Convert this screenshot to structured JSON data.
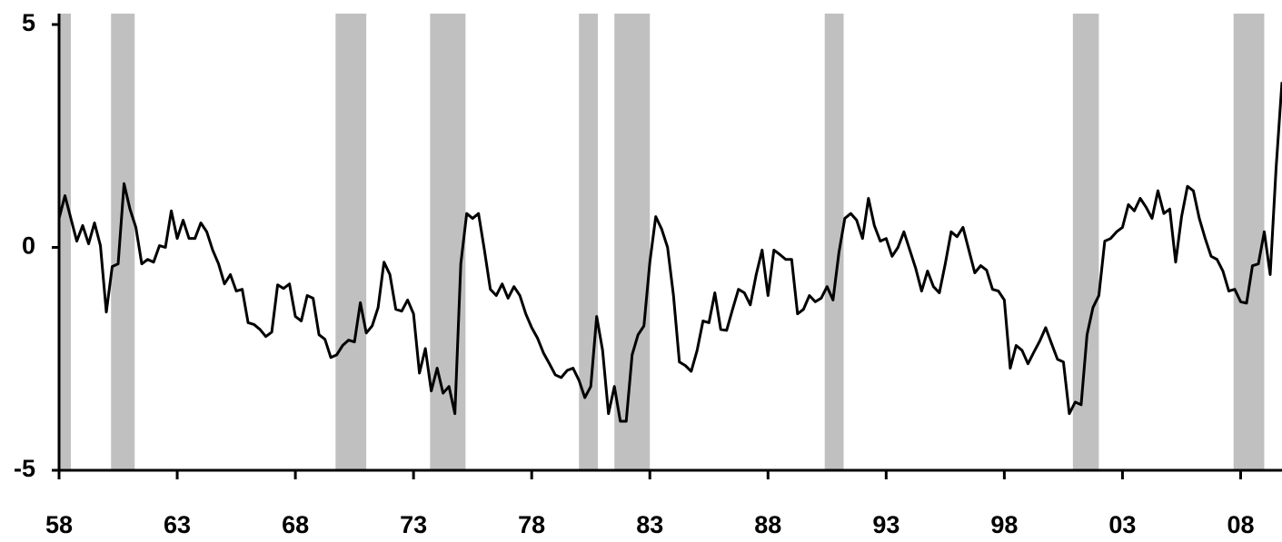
{
  "chart_data": {
    "type": "line",
    "x": [
      58,
      58.25,
      58.5,
      58.75,
      59,
      59.25,
      59.5,
      59.75,
      60,
      60.25,
      60.5,
      60.75,
      61,
      61.25,
      61.5,
      61.75,
      62,
      62.25,
      62.5,
      62.75,
      63,
      63.25,
      63.5,
      63.75,
      64,
      64.25,
      64.5,
      64.75,
      65,
      65.25,
      65.5,
      65.75,
      66,
      66.25,
      66.5,
      66.75,
      67,
      67.25,
      67.5,
      67.75,
      68,
      68.25,
      68.5,
      68.75,
      69,
      69.25,
      69.5,
      69.75,
      70,
      70.25,
      70.5,
      70.75,
      71,
      71.25,
      71.5,
      71.75,
      72,
      72.25,
      72.5,
      72.75,
      73,
      73.25,
      73.5,
      73.75,
      74,
      74.25,
      74.5,
      74.75,
      75,
      75.25,
      75.5,
      75.75,
      76,
      76.25,
      76.5,
      76.75,
      77,
      77.25,
      77.5,
      77.75,
      78,
      78.25,
      78.5,
      78.75,
      79,
      79.25,
      79.5,
      79.75,
      80,
      80.25,
      80.5,
      80.75,
      81,
      81.25,
      81.5,
      81.75,
      82,
      82.25,
      82.5,
      82.75,
      83,
      83.25,
      83.5,
      83.75,
      84,
      84.25,
      84.5,
      84.75,
      85,
      85.25,
      85.5,
      85.75,
      86,
      86.25,
      86.5,
      86.75,
      87,
      87.25,
      87.5,
      87.75,
      88,
      88.25,
      88.5,
      88.75,
      89,
      89.25,
      89.5,
      89.75,
      90,
      90.25,
      90.5,
      90.75,
      91,
      91.25,
      91.5,
      91.75,
      92,
      92.25,
      92.5,
      92.75,
      93,
      93.25,
      93.5,
      93.75,
      94,
      94.25,
      94.5,
      94.75,
      95,
      95.25,
      95.5,
      95.75,
      96,
      96.25,
      96.5,
      96.75,
      97,
      97.25,
      97.5,
      97.75,
      98,
      98.25,
      98.5,
      98.75,
      99,
      99.25,
      99.5,
      99.75,
      100,
      100.25,
      100.5,
      100.75,
      101,
      101.25,
      101.5,
      101.75,
      102,
      102.25,
      102.5,
      102.75,
      103,
      103.25,
      103.5,
      103.75,
      104,
      104.25,
      104.5,
      104.75,
      105,
      105.25,
      105.5,
      105.75,
      106,
      106.25,
      106.5,
      106.75,
      107,
      107.25,
      107.5,
      107.75,
      108,
      108.25,
      108.5,
      108.75,
      109,
      109.25,
      109.5,
      109.75
    ],
    "series": [
      {
        "color": "#000000",
        "values": [
          0.65,
          1.16,
          0.65,
          0.14,
          0.49,
          0.08,
          0.55,
          0.04,
          -1.45,
          -0.43,
          -0.37,
          1.43,
          0.86,
          0.45,
          -0.37,
          -0.27,
          -0.33,
          0.04,
          0,
          0.82,
          0.2,
          0.61,
          0.2,
          0.2,
          0.55,
          0.35,
          -0.06,
          -0.37,
          -0.82,
          -0.61,
          -0.98,
          -0.94,
          -1.69,
          -1.73,
          -1.84,
          -2.0,
          -1.9,
          -0.84,
          -0.92,
          -0.82,
          -1.55,
          -1.65,
          -1.08,
          -1.14,
          -1.96,
          -2.06,
          -2.47,
          -2.41,
          -2.2,
          -2.08,
          -2.12,
          -1.24,
          -1.92,
          -1.76,
          -1.35,
          -0.33,
          -0.61,
          -1.39,
          -1.43,
          -1.18,
          -1.49,
          -2.82,
          -2.27,
          -3.22,
          -2.71,
          -3.27,
          -3.12,
          -3.73,
          -0.37,
          0.76,
          0.65,
          0.76,
          -0.06,
          -0.94,
          -1.08,
          -0.82,
          -1.14,
          -0.88,
          -1.08,
          -1.49,
          -1.8,
          -2.04,
          -2.37,
          -2.61,
          -2.86,
          -2.92,
          -2.76,
          -2.71,
          -2.98,
          -3.37,
          -3.12,
          -1.55,
          -2.31,
          -3.73,
          -3.12,
          -3.9,
          -3.9,
          -2.41,
          -1.96,
          -1.76,
          -0.33,
          0.69,
          0.41,
          0,
          -1.08,
          -2.57,
          -2.65,
          -2.78,
          -2.31,
          -1.65,
          -1.69,
          -1.02,
          -1.84,
          -1.86,
          -1.39,
          -0.94,
          -1.02,
          -1.29,
          -0.61,
          -0.06,
          -1.08,
          -0.06,
          -0.16,
          -0.27,
          -0.27,
          -1.49,
          -1.39,
          -1.08,
          -1.22,
          -1.14,
          -0.88,
          -1.18,
          -0.12,
          0.65,
          0.76,
          0.61,
          0.2,
          1.1,
          0.49,
          0.14,
          0.2,
          -0.2,
          0,
          0.35,
          -0.06,
          -0.47,
          -0.98,
          -0.53,
          -0.88,
          -1.02,
          -0.37,
          0.35,
          0.24,
          0.45,
          -0.06,
          -0.57,
          -0.41,
          -0.51,
          -0.94,
          -0.98,
          -1.18,
          -2.71,
          -2.2,
          -2.31,
          -2.61,
          -2.35,
          -2.1,
          -1.8,
          -2.16,
          -2.51,
          -2.57,
          -3.73,
          -3.47,
          -3.53,
          -1.96,
          -1.35,
          -1.08,
          0.14,
          0.2,
          0.35,
          0.45,
          0.96,
          0.82,
          1.1,
          0.9,
          0.65,
          1.27,
          0.76,
          0.86,
          -0.33,
          0.69,
          1.37,
          1.27,
          0.65,
          0.2,
          -0.2,
          -0.27,
          -0.53,
          -0.98,
          -0.94,
          -1.22,
          -1.25,
          -0.41,
          -0.37,
          0.35,
          -0.61,
          1.78,
          3.71
        ]
      }
    ],
    "shaded_periods": [
      [
        58.0,
        58.5
      ],
      [
        60.2,
        61.2
      ],
      [
        69.7,
        71.0
      ],
      [
        73.7,
        75.2
      ],
      [
        80.0,
        80.8
      ],
      [
        81.5,
        83.0
      ],
      [
        90.4,
        91.2
      ],
      [
        100.9,
        102.0
      ],
      [
        107.7,
        109.0
      ]
    ],
    "shade_color": "#c0c0c0",
    "xlim": [
      58,
      109.75
    ],
    "xticks": [
      58,
      63,
      68,
      73,
      78,
      83,
      88,
      93,
      98,
      {
        "value": 103,
        "label": "03"
      },
      {
        "value": 108,
        "label": "08"
      }
    ],
    "ylim": [
      -5,
      5
    ],
    "yticks": [
      -5,
      0,
      5
    ]
  }
}
